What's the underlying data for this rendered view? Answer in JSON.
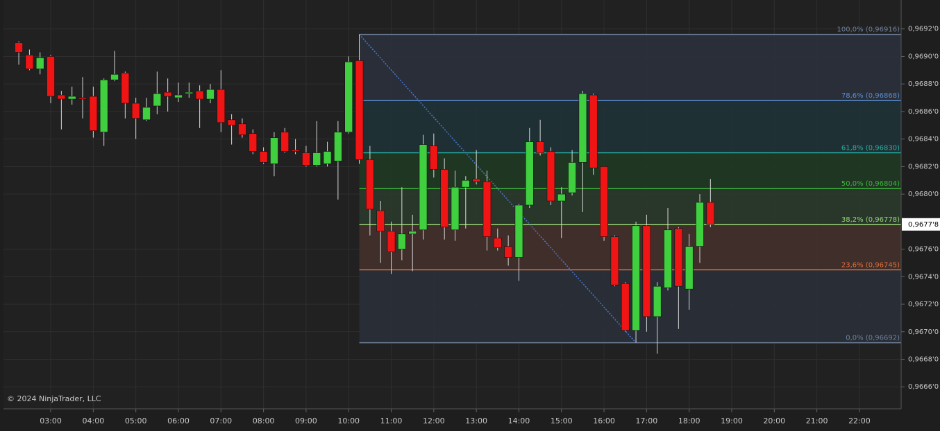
{
  "chart_data": {
    "type": "candlestick",
    "copyright": "© 2024 NinjaTrader, LLC",
    "up_color": "#3fcf3f",
    "down_color": "#f01414",
    "grid": true,
    "x": [
      2.25,
      2.5,
      2.75,
      3,
      3.25,
      3.5,
      3.75,
      4,
      4.25,
      4.5,
      4.75,
      5,
      5.25,
      5.5,
      5.75,
      6,
      6.25,
      6.5,
      6.75,
      7,
      7.25,
      7.5,
      7.75,
      8,
      8.25,
      8.5,
      8.75,
      9,
      9.25,
      9.5,
      9.75,
      10,
      10.25,
      10.5,
      10.75,
      11,
      11.25,
      11.5,
      11.75,
      12,
      12.25,
      12.5,
      12.75,
      13,
      13.25,
      13.5,
      13.75,
      14,
      14.25,
      14.5,
      14.75,
      15,
      15.25,
      15.5,
      15.75,
      16,
      16.25,
      16.5,
      16.75,
      17,
      17.25,
      17.5,
      17.75,
      18,
      18.25,
      18.5
    ],
    "open": [
      0.9691,
      0.96901,
      0.96891,
      0.969,
      0.96872,
      0.96869,
      0.9687,
      0.96871,
      0.96845,
      0.96883,
      0.96888,
      0.96866,
      0.96854,
      0.96864,
      0.96874,
      0.9687,
      0.96873,
      0.96875,
      0.96869,
      0.96876,
      0.96854,
      0.96851,
      0.96844,
      0.96831,
      0.96822,
      0.96845,
      0.96832,
      0.9683,
      0.96821,
      0.96822,
      0.96824,
      0.96845,
      0.96897,
      0.96825,
      0.96788,
      0.96773,
      0.9676,
      0.96771,
      0.96774,
      0.96835,
      0.96818,
      0.96774,
      0.96805,
      0.96811,
      0.96809,
      0.96768,
      0.96762,
      0.96754,
      0.96792,
      0.96838,
      0.96831,
      0.96795,
      0.96801,
      0.96823,
      0.96872,
      0.9682,
      0.96769,
      0.96735,
      0.96701,
      0.96777,
      0.96711,
      0.96732,
      0.96775,
      0.96731,
      0.96762,
      0.96794
    ],
    "high": [
      0.96911,
      0.96905,
      0.96903,
      0.96901,
      0.96875,
      0.96878,
      0.96885,
      0.96878,
      0.96884,
      0.96904,
      0.96889,
      0.9687,
      0.9687,
      0.96889,
      0.96884,
      0.96881,
      0.96881,
      0.96879,
      0.9688,
      0.9689,
      0.96858,
      0.96855,
      0.96847,
      0.96834,
      0.96845,
      0.96848,
      0.9684,
      0.96835,
      0.96853,
      0.96838,
      0.96853,
      0.969,
      0.96916,
      0.96835,
      0.96795,
      0.9678,
      0.96805,
      0.96785,
      0.96843,
      0.96844,
      0.96826,
      0.96817,
      0.96813,
      0.96832,
      0.96817,
      0.96775,
      0.9677,
      0.96793,
      0.96848,
      0.96854,
      0.96834,
      0.96805,
      0.96832,
      0.96875,
      0.96873,
      0.9682,
      0.9677,
      0.96736,
      0.9678,
      0.96785,
      0.96736,
      0.9679,
      0.96776,
      0.96771,
      0.968,
      0.96811
    ],
    "low": [
      0.96894,
      0.9689,
      0.96887,
      0.96866,
      0.96847,
      0.96865,
      0.96855,
      0.96841,
      0.96835,
      0.96882,
      0.96855,
      0.9684,
      0.96853,
      0.96858,
      0.9686,
      0.96867,
      0.9687,
      0.96848,
      0.96866,
      0.96845,
      0.96836,
      0.96841,
      0.96829,
      0.96822,
      0.96813,
      0.9683,
      0.96829,
      0.9682,
      0.9682,
      0.9682,
      0.96796,
      0.96844,
      0.96822,
      0.9677,
      0.9675,
      0.96742,
      0.96752,
      0.96744,
      0.96767,
      0.96812,
      0.96767,
      0.96766,
      0.96775,
      0.96807,
      0.96759,
      0.96759,
      0.96748,
      0.96737,
      0.9679,
      0.96828,
      0.96792,
      0.96768,
      0.96799,
      0.96787,
      0.96814,
      0.96766,
      0.96733,
      0.967,
      0.96692,
      0.967,
      0.96684,
      0.9673,
      0.96702,
      0.96716,
      0.9675,
      0.96776
    ],
    "close": [
      0.96903,
      0.96891,
      0.96899,
      0.96871,
      0.96869,
      0.96871,
      0.96869,
      0.96846,
      0.96883,
      0.96887,
      0.96866,
      0.96855,
      0.96863,
      0.96873,
      0.96871,
      0.96872,
      0.96874,
      0.96869,
      0.96876,
      0.96852,
      0.9685,
      0.96843,
      0.96831,
      0.96823,
      0.96841,
      0.96831,
      0.96831,
      0.96821,
      0.9683,
      0.96831,
      0.96845,
      0.96896,
      0.96825,
      0.96789,
      0.96773,
      0.96758,
      0.96771,
      0.96773,
      0.96836,
      0.96818,
      0.96776,
      0.96805,
      0.9681,
      0.96809,
      0.96769,
      0.96761,
      0.96754,
      0.96792,
      0.96838,
      0.9683,
      0.96795,
      0.968,
      0.96823,
      0.96873,
      0.96819,
      0.96769,
      0.96734,
      0.96701,
      0.96777,
      0.96711,
      0.96733,
      0.96774,
      0.96733,
      0.96762,
      0.96794,
      0.96778
    ],
    "xlim": [
      1.89,
      22.98
    ],
    "xticks": [
      {
        "value": 3,
        "label": "03:00"
      },
      {
        "value": 4,
        "label": "04:00"
      },
      {
        "value": 5,
        "label": "05:00"
      },
      {
        "value": 6,
        "label": "06:00"
      },
      {
        "value": 7,
        "label": "07:00"
      },
      {
        "value": 8,
        "label": "08:00"
      },
      {
        "value": 9,
        "label": "09:00"
      },
      {
        "value": 10,
        "label": "10:00"
      },
      {
        "value": 11,
        "label": "11:00"
      },
      {
        "value": 12,
        "label": "12:00"
      },
      {
        "value": 13,
        "label": "13:00"
      },
      {
        "value": 14,
        "label": "14:00"
      },
      {
        "value": 15,
        "label": "15:00"
      },
      {
        "value": 16,
        "label": "16:00"
      },
      {
        "value": 17,
        "label": "17:00"
      },
      {
        "value": 18,
        "label": "18:00"
      },
      {
        "value": 19,
        "label": "19:00"
      },
      {
        "value": 20,
        "label": "20:00"
      },
      {
        "value": 21,
        "label": "21:00"
      },
      {
        "value": 22,
        "label": "22:00"
      }
    ],
    "ylim": [
      0.96644,
      0.96941
    ],
    "yticks": [
      {
        "value": 0.9666,
        "label": "0,9666'0"
      },
      {
        "value": 0.9668,
        "label": "0,9668'0"
      },
      {
        "value": 0.967,
        "label": "0,9670'0"
      },
      {
        "value": 0.9672,
        "label": "0,9672'0"
      },
      {
        "value": 0.9674,
        "label": "0,9674'0"
      },
      {
        "value": 0.9676,
        "label": "0,9676'0"
      },
      {
        "value": 0.968,
        "label": "0,9680'0"
      },
      {
        "value": 0.9682,
        "label": "0,9682'0"
      },
      {
        "value": 0.9684,
        "label": "0,9684'0"
      },
      {
        "value": 0.9686,
        "label": "0,9686'0"
      },
      {
        "value": 0.9688,
        "label": "0,9688'0"
      },
      {
        "value": 0.969,
        "label": "0,9690'0"
      },
      {
        "value": 0.9692,
        "label": "0,9692'0"
      }
    ],
    "last_price": {
      "value": 0.96778,
      "label": "0,9677'8"
    },
    "fibonacci": {
      "anchor_x": [
        10.25,
        16.75
      ],
      "line_color": "#4a78d0",
      "levels": [
        {
          "label": "100,0% (0,96916)",
          "value": 0.96916,
          "color": "#6f809a",
          "fill": "#2a303c"
        },
        {
          "label": "78,6% (0,96868)",
          "value": 0.96868,
          "color": "#5b8fd6",
          "fill": "#1f3236"
        },
        {
          "label": "61,8% (0,96830)",
          "value": 0.9683,
          "color": "#27b0a6",
          "fill": "#1f3a22"
        },
        {
          "label": "50,0% (0,96804)",
          "value": 0.96804,
          "color": "#3cb93c",
          "fill": "#2a3a2c"
        },
        {
          "label": "38,2% (0,96778)",
          "value": 0.96778,
          "color": "#96d878",
          "fill": "#44302b"
        },
        {
          "label": "23,6% (0,96745)",
          "value": 0.96745,
          "color": "#e0703c",
          "fill": "#2a2f37"
        },
        {
          "label": "0,0% (0,96692)",
          "value": 0.96692,
          "color": "#6f809a",
          "fill": "#2a2f37"
        }
      ]
    }
  }
}
